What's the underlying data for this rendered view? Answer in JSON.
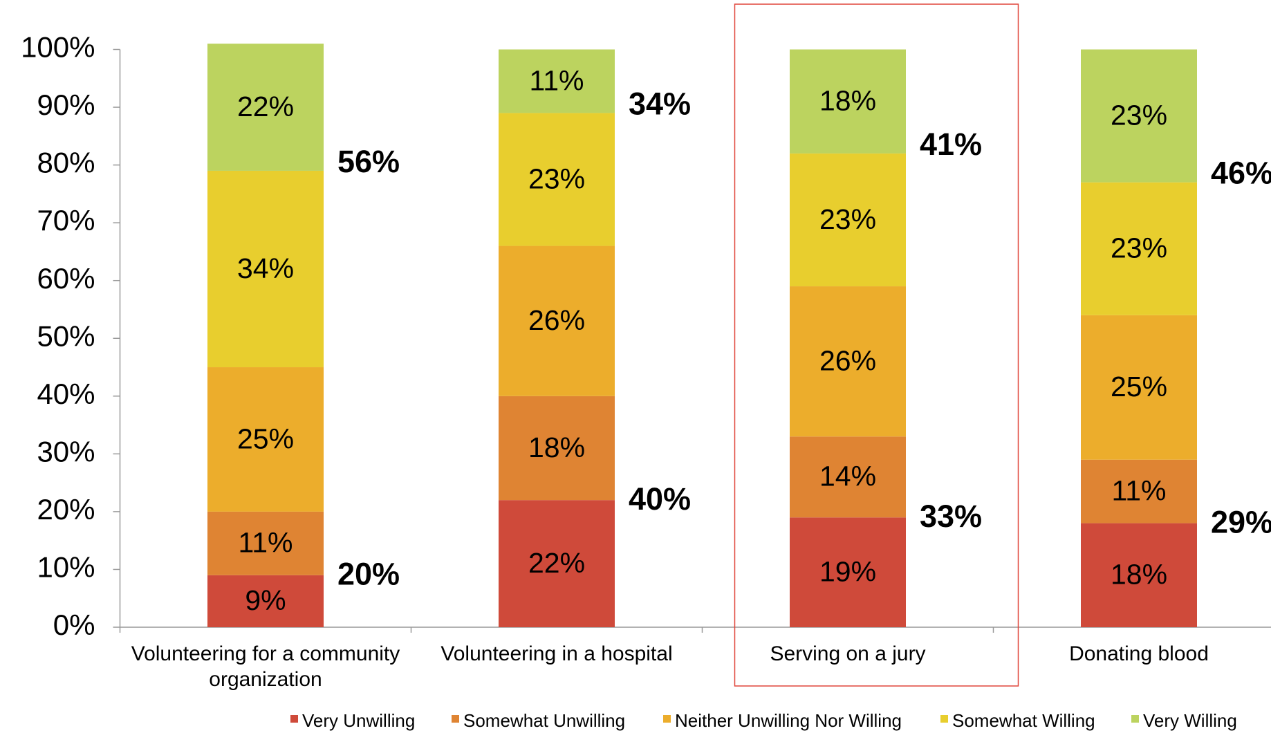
{
  "chart_data": {
    "type": "stacked_bar",
    "categories": [
      "Volunteering for a community organization",
      "Volunteering in a hospital",
      "Serving on a jury",
      "Donating blood"
    ],
    "series": [
      {
        "name": "Very Unwilling",
        "color": "#cf4a3a",
        "values": [
          9,
          22,
          19,
          18
        ],
        "value_labels": [
          "9%",
          "22%",
          "19%",
          "18%"
        ]
      },
      {
        "name": "Somewhat Unwilling",
        "color": "#df8433",
        "values": [
          11,
          18,
          14,
          11
        ],
        "value_labels": [
          "11%",
          "18%",
          "14%",
          "11%"
        ]
      },
      {
        "name": "Neither Unwilling Nor Willing",
        "color": "#ecad2c",
        "values": [
          25,
          26,
          26,
          25
        ],
        "value_labels": [
          "25%",
          "26%",
          "26%",
          "25%"
        ]
      },
      {
        "name": "Somewhat Willing",
        "color": "#e8ce2e",
        "values": [
          34,
          23,
          23,
          23
        ],
        "value_labels": [
          "34%",
          "23%",
          "23%",
          "23%"
        ]
      },
      {
        "name": "Very Willing",
        "color": "#bcd35f",
        "values": [
          22,
          11,
          18,
          23
        ],
        "value_labels": [
          "22%",
          "11%",
          "18%",
          "23%"
        ]
      }
    ],
    "unwilling_totals": {
      "values": [
        20,
        40,
        33,
        29
      ],
      "value_labels": [
        "20%",
        "40%",
        "33%",
        "29%"
      ]
    },
    "willing_totals": {
      "values": [
        56,
        34,
        41,
        46
      ],
      "value_labels": [
        "56%",
        "34%",
        "41%",
        "46%"
      ]
    },
    "highlight_index": 2,
    "ylim": [
      0,
      100
    ],
    "yticks": [
      {
        "value": 0,
        "label": "0%"
      },
      {
        "value": 10,
        "label": "10%"
      },
      {
        "value": 20,
        "label": "20%"
      },
      {
        "value": 30,
        "label": "30%"
      },
      {
        "value": 40,
        "label": "40%"
      },
      {
        "value": 50,
        "label": "50%"
      },
      {
        "value": 60,
        "label": "60%"
      },
      {
        "value": 70,
        "label": "70%"
      },
      {
        "value": 80,
        "label": "80%"
      },
      {
        "value": 90,
        "label": "90%"
      },
      {
        "value": 100,
        "label": "100%"
      }
    ],
    "grid": false,
    "legend": "bottom"
  }
}
